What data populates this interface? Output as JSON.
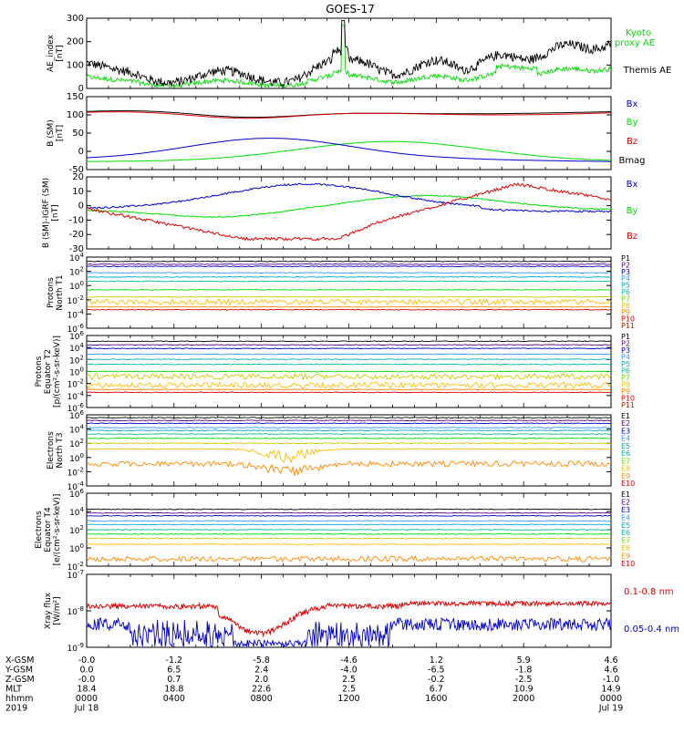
{
  "title": "GOES-17",
  "colors": {
    "black": "#000000",
    "green": "#00dd00",
    "blue": "#0000cc",
    "red": "#dd0000",
    "orange": "#ff8800",
    "yellow": "#e6c800",
    "lime": "#66dd00",
    "teal": "#00bb99",
    "cyan": "#00aacc",
    "lightblue": "#3399ff",
    "navy": "#000066",
    "purple": "#660088",
    "darkred": "#990000",
    "maroon": "#aa2200",
    "gold": "#ffbb00",
    "olive": "#cccc00",
    "bluegreen": "#00aaaa"
  },
  "chart_data": [
    {
      "type": "line",
      "id": "ae",
      "ylabel": "AE_index\n[nT]",
      "ylim": [
        0,
        300
      ],
      "yticks": [
        "0",
        "100",
        "200",
        "300"
      ],
      "series": [
        {
          "name": "Kyoto proxy AE",
          "color": "#00dd00"
        },
        {
          "name": "Themis AE",
          "color": "#000000"
        }
      ],
      "legend": [
        "Kyoto\nproxy AE",
        "Themis AE"
      ]
    },
    {
      "type": "line",
      "id": "bsm",
      "ylabel": "B (SM)\n[nT]",
      "ylim": [
        -50,
        150
      ],
      "yticks": [
        "-50",
        "0",
        "50",
        "100",
        "150"
      ],
      "series": [
        {
          "name": "Bx",
          "color": "#0000cc"
        },
        {
          "name": "By",
          "color": "#00dd00"
        },
        {
          "name": "Bz",
          "color": "#dd0000"
        },
        {
          "name": "Bmag",
          "color": "#000000"
        }
      ]
    },
    {
      "type": "line",
      "id": "bigrf",
      "ylabel": "B (SM)-IGRF (SM)\n[nT]",
      "ylim": [
        -30,
        20
      ],
      "yticks": [
        "-30",
        "-20",
        "-10",
        "0",
        "10",
        "20"
      ],
      "series": [
        {
          "name": "Bx",
          "color": "#0000cc"
        },
        {
          "name": "By",
          "color": "#00dd00"
        },
        {
          "name": "Bz",
          "color": "#dd0000"
        }
      ]
    },
    {
      "type": "line",
      "id": "pn",
      "ylabel": "Protons\nNorth T1",
      "yscale": "log",
      "yticks": [
        "10^4",
        "10^2",
        "10^0",
        "10^-2",
        "10^-4",
        "10^-6"
      ],
      "series": [
        "P1",
        "P2",
        "P3",
        "P4",
        "P5",
        "P6",
        "P7",
        "P8",
        "P9",
        "P10",
        "P11"
      ]
    },
    {
      "type": "line",
      "id": "pe",
      "ylabel": "Protons\nEquator T2\n[p/(cm²-s-sr-keV)]",
      "yscale": "log",
      "yticks": [
        "10^4",
        "10^2",
        "10^0",
        "10^-2",
        "10^-4",
        "10^-6"
      ],
      "ytop": "10^6",
      "series": [
        "P1",
        "P2",
        "P3",
        "P4",
        "P5",
        "P6",
        "P7",
        "P8",
        "P9",
        "P10",
        "P11"
      ]
    },
    {
      "type": "line",
      "id": "en",
      "ylabel": "Electrons\nNorth T3",
      "yscale": "log",
      "yticks": [
        "10^4",
        "10^2",
        "10^0",
        "10^-2",
        "10^-4"
      ],
      "ytop": "10^6",
      "series": [
        "E1",
        "E2",
        "E3",
        "E4",
        "E5",
        "E6",
        "E7",
        "E8",
        "E9",
        "E10"
      ]
    },
    {
      "type": "line",
      "id": "ee",
      "ylabel": "Electrons\nEquator T4\n[e/(cm²-s-sr-keV)]",
      "yscale": "log",
      "yticks": [
        "10^6",
        "10^4",
        "10^2",
        "10^0",
        "10^-2"
      ],
      "series": [
        "E1",
        "E2",
        "E3",
        "E4",
        "E5",
        "E6",
        "E7",
        "E8",
        "E9",
        "E10"
      ]
    },
    {
      "type": "line",
      "id": "xray",
      "ylabel": "Xray flux\n[W/m²]",
      "yscale": "log",
      "yticks": [
        "10^-7",
        "10^-8",
        "10^-9"
      ],
      "series": [
        {
          "name": "0.1-0.8 nm",
          "color": "#dd0000"
        },
        {
          "name": "0.05-0.4 nm",
          "color": "#0000cc"
        }
      ]
    }
  ],
  "footer": {
    "rows": [
      {
        "label": "X-GSM",
        "values": [
          "-0.0",
          "-1.2",
          "-5.8",
          "-4.6",
          "1.2",
          "5.9",
          "4.6"
        ]
      },
      {
        "label": "Y-GSM",
        "values": [
          "0.0",
          "6.5",
          "2.4",
          "-4.0",
          "-6.5",
          "-1.8",
          "4.6"
        ]
      },
      {
        "label": "Z-GSM",
        "values": [
          "-0.0",
          "0.7",
          "2.0",
          "2.5",
          "-0.2",
          "-2.5",
          "-1.0"
        ]
      },
      {
        "label": "MLT",
        "values": [
          "18.4",
          "18.8",
          "22.6",
          "2.5",
          "6.7",
          "10.9",
          "14.9"
        ]
      },
      {
        "label": "hhmm",
        "values": [
          "0000",
          "0400",
          "0800",
          "1200",
          "1600",
          "2000",
          "0000"
        ]
      },
      {
        "label": "2019",
        "values": [
          "Jul 18",
          "",
          "",
          "",
          "",
          "",
          "Jul 19"
        ]
      }
    ]
  }
}
